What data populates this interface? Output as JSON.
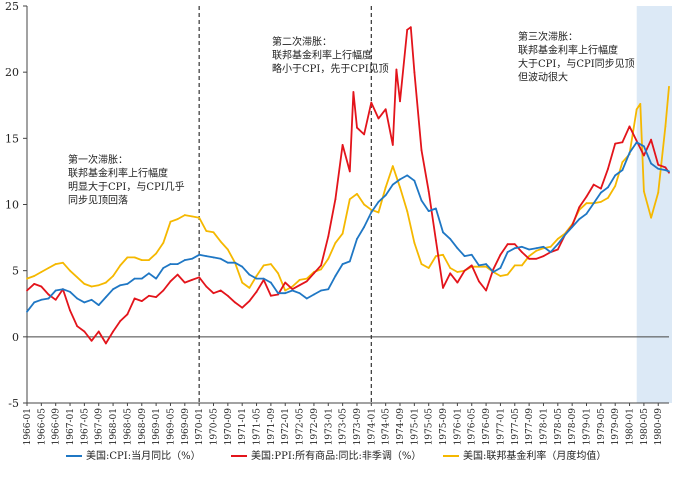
{
  "chart_data": {
    "type": "line",
    "ylim": [
      -5,
      25
    ],
    "yticks": [
      -5,
      0,
      5,
      10,
      15,
      20,
      25
    ],
    "x_start": "1966-01",
    "x_end": "1980-12",
    "xtick_labels": [
      "1966-01",
      "1966-05",
      "1966-09",
      "1967-01",
      "1967-05",
      "1967-09",
      "1968-01",
      "1968-05",
      "1968-09",
      "1969-01",
      "1969-05",
      "1969-09",
      "1970-01",
      "1970-05",
      "1970-09",
      "1971-01",
      "1971-05",
      "1971-09",
      "1972-01",
      "1972-05",
      "1972-09",
      "1973-01",
      "1973-05",
      "1973-09",
      "1974-01",
      "1974-05",
      "1974-09",
      "1975-01",
      "1975-05",
      "1975-09",
      "1976-01",
      "1976-05",
      "1976-09",
      "1977-01",
      "1977-05",
      "1977-09",
      "1978-01",
      "1978-05",
      "1978-09",
      "1979-01",
      "1979-05",
      "1979-09",
      "1980-01",
      "1980-05",
      "1980-09"
    ],
    "grid": false,
    "legend_position": "bottom",
    "colors": {
      "cpi": "#1f77c4",
      "ppi": "#e3141b",
      "ffr": "#f5b800",
      "highlight": "#dce9f6",
      "vline": "#333333"
    },
    "vlines": [
      "1970-01",
      "1974-01"
    ],
    "highlight_range": [
      "1980-03",
      "1980-12"
    ],
    "annotations": [
      {
        "lines": [
          "第一次滞胀：",
          "联邦基金利率上行幅度",
          "明显大于CPI，与CPI几乎",
          "同步见顶回落"
        ]
      },
      {
        "lines": [
          "第二次滞胀：",
          "联邦基金利率上行幅度",
          "略小于CPI，先于CPI见顶"
        ]
      },
      {
        "lines": [
          "第三次滞胀：",
          "联邦基金利率上行幅度",
          "大于CPI，与CPI同步见顶",
          "但波动很大"
        ]
      }
    ],
    "series": [
      {
        "name": "美国:CPI:当月同比（%）",
        "key": "cpi",
        "points": [
          [
            "1966-01",
            1.9
          ],
          [
            "1966-03",
            2.6
          ],
          [
            "1966-05",
            2.8
          ],
          [
            "1966-07",
            2.9
          ],
          [
            "1966-09",
            3.5
          ],
          [
            "1966-11",
            3.6
          ],
          [
            "1967-01",
            3.4
          ],
          [
            "1967-03",
            2.9
          ],
          [
            "1967-05",
            2.6
          ],
          [
            "1967-07",
            2.8
          ],
          [
            "1967-09",
            2.4
          ],
          [
            "1967-11",
            3.0
          ],
          [
            "1968-01",
            3.6
          ],
          [
            "1968-03",
            3.9
          ],
          [
            "1968-05",
            4.0
          ],
          [
            "1968-07",
            4.4
          ],
          [
            "1968-09",
            4.4
          ],
          [
            "1968-11",
            4.8
          ],
          [
            "1969-01",
            4.4
          ],
          [
            "1969-03",
            5.2
          ],
          [
            "1969-05",
            5.5
          ],
          [
            "1969-07",
            5.5
          ],
          [
            "1969-09",
            5.8
          ],
          [
            "1969-11",
            5.9
          ],
          [
            "1970-01",
            6.2
          ],
          [
            "1970-03",
            6.1
          ],
          [
            "1970-05",
            6.0
          ],
          [
            "1970-07",
            5.9
          ],
          [
            "1970-09",
            5.6
          ],
          [
            "1970-11",
            5.6
          ],
          [
            "1971-01",
            5.3
          ],
          [
            "1971-03",
            4.7
          ],
          [
            "1971-05",
            4.4
          ],
          [
            "1971-07",
            4.4
          ],
          [
            "1971-09",
            4.1
          ],
          [
            "1971-11",
            3.3
          ],
          [
            "1972-01",
            3.3
          ],
          [
            "1972-03",
            3.5
          ],
          [
            "1972-05",
            3.3
          ],
          [
            "1972-07",
            2.9
          ],
          [
            "1972-09",
            3.2
          ],
          [
            "1972-11",
            3.5
          ],
          [
            "1973-01",
            3.6
          ],
          [
            "1973-03",
            4.6
          ],
          [
            "1973-05",
            5.5
          ],
          [
            "1973-07",
            5.7
          ],
          [
            "1973-09",
            7.4
          ],
          [
            "1973-11",
            8.3
          ],
          [
            "1974-01",
            9.4
          ],
          [
            "1974-03",
            10.2
          ],
          [
            "1974-05",
            10.7
          ],
          [
            "1974-07",
            11.5
          ],
          [
            "1974-09",
            11.9
          ],
          [
            "1974-11",
            12.2
          ],
          [
            "1975-01",
            11.8
          ],
          [
            "1975-03",
            10.3
          ],
          [
            "1975-05",
            9.5
          ],
          [
            "1975-07",
            9.7
          ],
          [
            "1975-09",
            7.9
          ],
          [
            "1975-11",
            7.4
          ],
          [
            "1976-01",
            6.7
          ],
          [
            "1976-03",
            6.1
          ],
          [
            "1976-05",
            6.2
          ],
          [
            "1976-07",
            5.4
          ],
          [
            "1976-09",
            5.5
          ],
          [
            "1976-11",
            4.9
          ],
          [
            "1977-01",
            5.2
          ],
          [
            "1977-03",
            6.4
          ],
          [
            "1977-05",
            6.7
          ],
          [
            "1977-07",
            6.8
          ],
          [
            "1977-09",
            6.6
          ],
          [
            "1977-11",
            6.7
          ],
          [
            "1978-01",
            6.8
          ],
          [
            "1978-03",
            6.4
          ],
          [
            "1978-05",
            7.0
          ],
          [
            "1978-07",
            7.7
          ],
          [
            "1978-09",
            8.3
          ],
          [
            "1978-11",
            8.9
          ],
          [
            "1979-01",
            9.3
          ],
          [
            "1979-03",
            10.1
          ],
          [
            "1979-05",
            10.9
          ],
          [
            "1979-07",
            11.3
          ],
          [
            "1979-09",
            12.2
          ],
          [
            "1979-11",
            12.6
          ],
          [
            "1980-01",
            13.9
          ],
          [
            "1980-03",
            14.7
          ],
          [
            "1980-05",
            14.4
          ],
          [
            "1980-07",
            13.1
          ],
          [
            "1980-09",
            12.7
          ],
          [
            "1980-11",
            12.6
          ],
          [
            "1980-12",
            12.5
          ]
        ]
      },
      {
        "name": "美国:PPI:所有商品:同比:非季调（%）",
        "key": "ppi",
        "points": [
          [
            "1966-01",
            3.5
          ],
          [
            "1966-03",
            4.0
          ],
          [
            "1966-05",
            3.8
          ],
          [
            "1966-07",
            3.2
          ],
          [
            "1966-09",
            2.8
          ],
          [
            "1966-11",
            3.6
          ],
          [
            "1967-01",
            2.0
          ],
          [
            "1967-03",
            0.8
          ],
          [
            "1967-05",
            0.4
          ],
          [
            "1967-07",
            -0.3
          ],
          [
            "1967-09",
            0.4
          ],
          [
            "1967-11",
            -0.5
          ],
          [
            "1968-01",
            0.4
          ],
          [
            "1968-03",
            1.2
          ],
          [
            "1968-05",
            1.7
          ],
          [
            "1968-07",
            2.9
          ],
          [
            "1968-09",
            2.7
          ],
          [
            "1968-11",
            3.1
          ],
          [
            "1969-01",
            3.0
          ],
          [
            "1969-03",
            3.5
          ],
          [
            "1969-05",
            4.2
          ],
          [
            "1969-07",
            4.7
          ],
          [
            "1969-09",
            4.1
          ],
          [
            "1969-11",
            4.3
          ],
          [
            "1970-01",
            4.5
          ],
          [
            "1970-03",
            3.8
          ],
          [
            "1970-05",
            3.3
          ],
          [
            "1970-07",
            3.5
          ],
          [
            "1970-09",
            3.1
          ],
          [
            "1970-11",
            2.6
          ],
          [
            "1971-01",
            2.2
          ],
          [
            "1971-03",
            2.7
          ],
          [
            "1971-05",
            3.4
          ],
          [
            "1971-07",
            4.3
          ],
          [
            "1971-09",
            3.1
          ],
          [
            "1971-11",
            3.2
          ],
          [
            "1972-01",
            4.1
          ],
          [
            "1972-03",
            3.6
          ],
          [
            "1972-05",
            3.9
          ],
          [
            "1972-07",
            4.2
          ],
          [
            "1972-09",
            4.8
          ],
          [
            "1972-11",
            5.4
          ],
          [
            "1973-01",
            7.6
          ],
          [
            "1973-03",
            10.4
          ],
          [
            "1973-05",
            14.5
          ],
          [
            "1973-07",
            12.5
          ],
          [
            "1973-08",
            18.5
          ],
          [
            "1973-09",
            15.8
          ],
          [
            "1973-11",
            15.3
          ],
          [
            "1974-01",
            17.7
          ],
          [
            "1974-03",
            16.5
          ],
          [
            "1974-05",
            17.2
          ],
          [
            "1974-07",
            14.5
          ],
          [
            "1974-08",
            20.2
          ],
          [
            "1974-09",
            17.8
          ],
          [
            "1974-11",
            23.2
          ],
          [
            "1974-12",
            23.4
          ],
          [
            "1975-01",
            20.0
          ],
          [
            "1975-03",
            14.1
          ],
          [
            "1975-05",
            11.0
          ],
          [
            "1975-07",
            7.3
          ],
          [
            "1975-09",
            3.7
          ],
          [
            "1975-11",
            4.8
          ],
          [
            "1976-01",
            4.1
          ],
          [
            "1976-03",
            5.0
          ],
          [
            "1976-05",
            5.4
          ],
          [
            "1976-07",
            4.2
          ],
          [
            "1976-09",
            3.5
          ],
          [
            "1976-11",
            5.1
          ],
          [
            "1977-01",
            6.2
          ],
          [
            "1977-03",
            7.0
          ],
          [
            "1977-05",
            7.0
          ],
          [
            "1977-07",
            6.4
          ],
          [
            "1977-09",
            5.9
          ],
          [
            "1977-11",
            5.9
          ],
          [
            "1978-01",
            6.1
          ],
          [
            "1978-03",
            6.4
          ],
          [
            "1978-05",
            6.6
          ],
          [
            "1978-07",
            7.7
          ],
          [
            "1978-09",
            8.4
          ],
          [
            "1978-11",
            9.8
          ],
          [
            "1979-01",
            10.6
          ],
          [
            "1979-03",
            11.5
          ],
          [
            "1979-05",
            11.2
          ],
          [
            "1979-07",
            12.7
          ],
          [
            "1979-09",
            14.6
          ],
          [
            "1979-11",
            14.7
          ],
          [
            "1980-01",
            15.9
          ],
          [
            "1980-03",
            14.8
          ],
          [
            "1980-05",
            13.7
          ],
          [
            "1980-07",
            14.9
          ],
          [
            "1980-09",
            13.0
          ],
          [
            "1980-11",
            12.8
          ],
          [
            "1980-12",
            12.4
          ]
        ]
      },
      {
        "name": "美国:联邦基金利率（月度均值）",
        "key": "ffr",
        "points": [
          [
            "1966-01",
            4.4
          ],
          [
            "1966-03",
            4.6
          ],
          [
            "1966-05",
            4.9
          ],
          [
            "1966-07",
            5.2
          ],
          [
            "1966-09",
            5.5
          ],
          [
            "1966-11",
            5.6
          ],
          [
            "1967-01",
            5.0
          ],
          [
            "1967-03",
            4.5
          ],
          [
            "1967-05",
            4.0
          ],
          [
            "1967-07",
            3.8
          ],
          [
            "1967-09",
            3.9
          ],
          [
            "1967-11",
            4.1
          ],
          [
            "1968-01",
            4.6
          ],
          [
            "1968-03",
            5.4
          ],
          [
            "1968-05",
            6.0
          ],
          [
            "1968-07",
            6.0
          ],
          [
            "1968-09",
            5.8
          ],
          [
            "1968-11",
            5.8
          ],
          [
            "1969-01",
            6.3
          ],
          [
            "1969-03",
            7.1
          ],
          [
            "1969-05",
            8.7
          ],
          [
            "1969-07",
            8.9
          ],
          [
            "1969-09",
            9.2
          ],
          [
            "1969-11",
            9.1
          ],
          [
            "1970-01",
            9.0
          ],
          [
            "1970-03",
            8.0
          ],
          [
            "1970-05",
            7.9
          ],
          [
            "1970-07",
            7.2
          ],
          [
            "1970-09",
            6.6
          ],
          [
            "1970-11",
            5.6
          ],
          [
            "1971-01",
            4.1
          ],
          [
            "1971-03",
            3.7
          ],
          [
            "1971-05",
            4.6
          ],
          [
            "1971-07",
            5.4
          ],
          [
            "1971-09",
            5.5
          ],
          [
            "1971-11",
            4.8
          ],
          [
            "1972-01",
            3.5
          ],
          [
            "1972-03",
            3.8
          ],
          [
            "1972-05",
            4.3
          ],
          [
            "1972-07",
            4.4
          ],
          [
            "1972-09",
            4.9
          ],
          [
            "1972-11",
            5.1
          ],
          [
            "1973-01",
            5.9
          ],
          [
            "1973-03",
            7.1
          ],
          [
            "1973-05",
            7.8
          ],
          [
            "1973-07",
            10.4
          ],
          [
            "1973-09",
            10.8
          ],
          [
            "1973-11",
            10.0
          ],
          [
            "1974-01",
            9.6
          ],
          [
            "1974-03",
            9.4
          ],
          [
            "1974-05",
            11.3
          ],
          [
            "1974-07",
            12.9
          ],
          [
            "1974-09",
            11.3
          ],
          [
            "1974-11",
            9.5
          ],
          [
            "1975-01",
            7.1
          ],
          [
            "1975-03",
            5.5
          ],
          [
            "1975-05",
            5.2
          ],
          [
            "1975-07",
            6.1
          ],
          [
            "1975-09",
            6.2
          ],
          [
            "1975-11",
            5.2
          ],
          [
            "1976-01",
            4.9
          ],
          [
            "1976-03",
            5.0
          ],
          [
            "1976-05",
            5.3
          ],
          [
            "1976-07",
            5.3
          ],
          [
            "1976-09",
            5.3
          ],
          [
            "1976-11",
            4.9
          ],
          [
            "1977-01",
            4.6
          ],
          [
            "1977-03",
            4.7
          ],
          [
            "1977-05",
            5.4
          ],
          [
            "1977-07",
            5.4
          ],
          [
            "1977-09",
            6.1
          ],
          [
            "1977-11",
            6.5
          ],
          [
            "1978-01",
            6.7
          ],
          [
            "1978-03",
            6.8
          ],
          [
            "1978-05",
            7.4
          ],
          [
            "1978-07",
            7.8
          ],
          [
            "1978-09",
            8.5
          ],
          [
            "1978-11",
            9.6
          ],
          [
            "1979-01",
            10.1
          ],
          [
            "1979-03",
            10.1
          ],
          [
            "1979-05",
            10.2
          ],
          [
            "1979-07",
            10.5
          ],
          [
            "1979-09",
            11.4
          ],
          [
            "1979-11",
            13.2
          ],
          [
            "1980-01",
            13.8
          ],
          [
            "1980-03",
            17.2
          ],
          [
            "1980-04",
            17.6
          ],
          [
            "1980-05",
            11.0
          ],
          [
            "1980-07",
            9.0
          ],
          [
            "1980-09",
            10.9
          ],
          [
            "1980-11",
            15.9
          ],
          [
            "1980-12",
            18.9
          ]
        ]
      }
    ]
  }
}
